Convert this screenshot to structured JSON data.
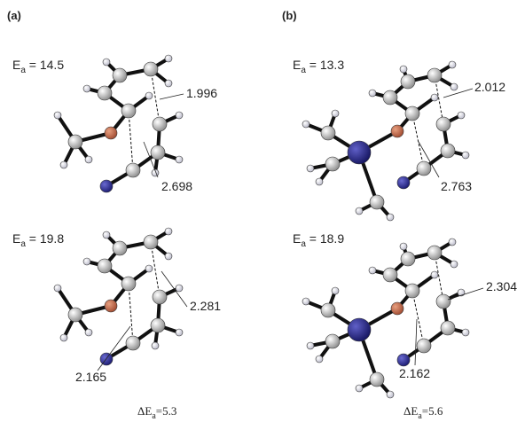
{
  "panels": [
    {
      "label": "(a)",
      "structures": [
        {
          "energy": {
            "symbol": "E",
            "subscript": "a",
            "text": " = 14.5"
          },
          "distances": [
            "1.996",
            "2.698"
          ]
        },
        {
          "energy": {
            "symbol": "E",
            "subscript": "a",
            "text": " = 19.8"
          },
          "distances": [
            "2.281",
            "2.165"
          ]
        }
      ],
      "difference": {
        "symbol": "ΔE",
        "subscript": "a",
        "text": "=5.3"
      }
    },
    {
      "label": "(b)",
      "structures": [
        {
          "energy": {
            "symbol": "E",
            "subscript": "a",
            "text": " = 13.3"
          },
          "distances": [
            "2.012",
            "2.763"
          ]
        },
        {
          "energy": {
            "symbol": "E",
            "subscript": "a",
            "text": " = 18.9"
          },
          "distances": [
            "2.304",
            "2.162"
          ]
        }
      ],
      "difference": {
        "symbol": "ΔE",
        "subscript": "a",
        "text": "=5.6"
      }
    }
  ]
}
